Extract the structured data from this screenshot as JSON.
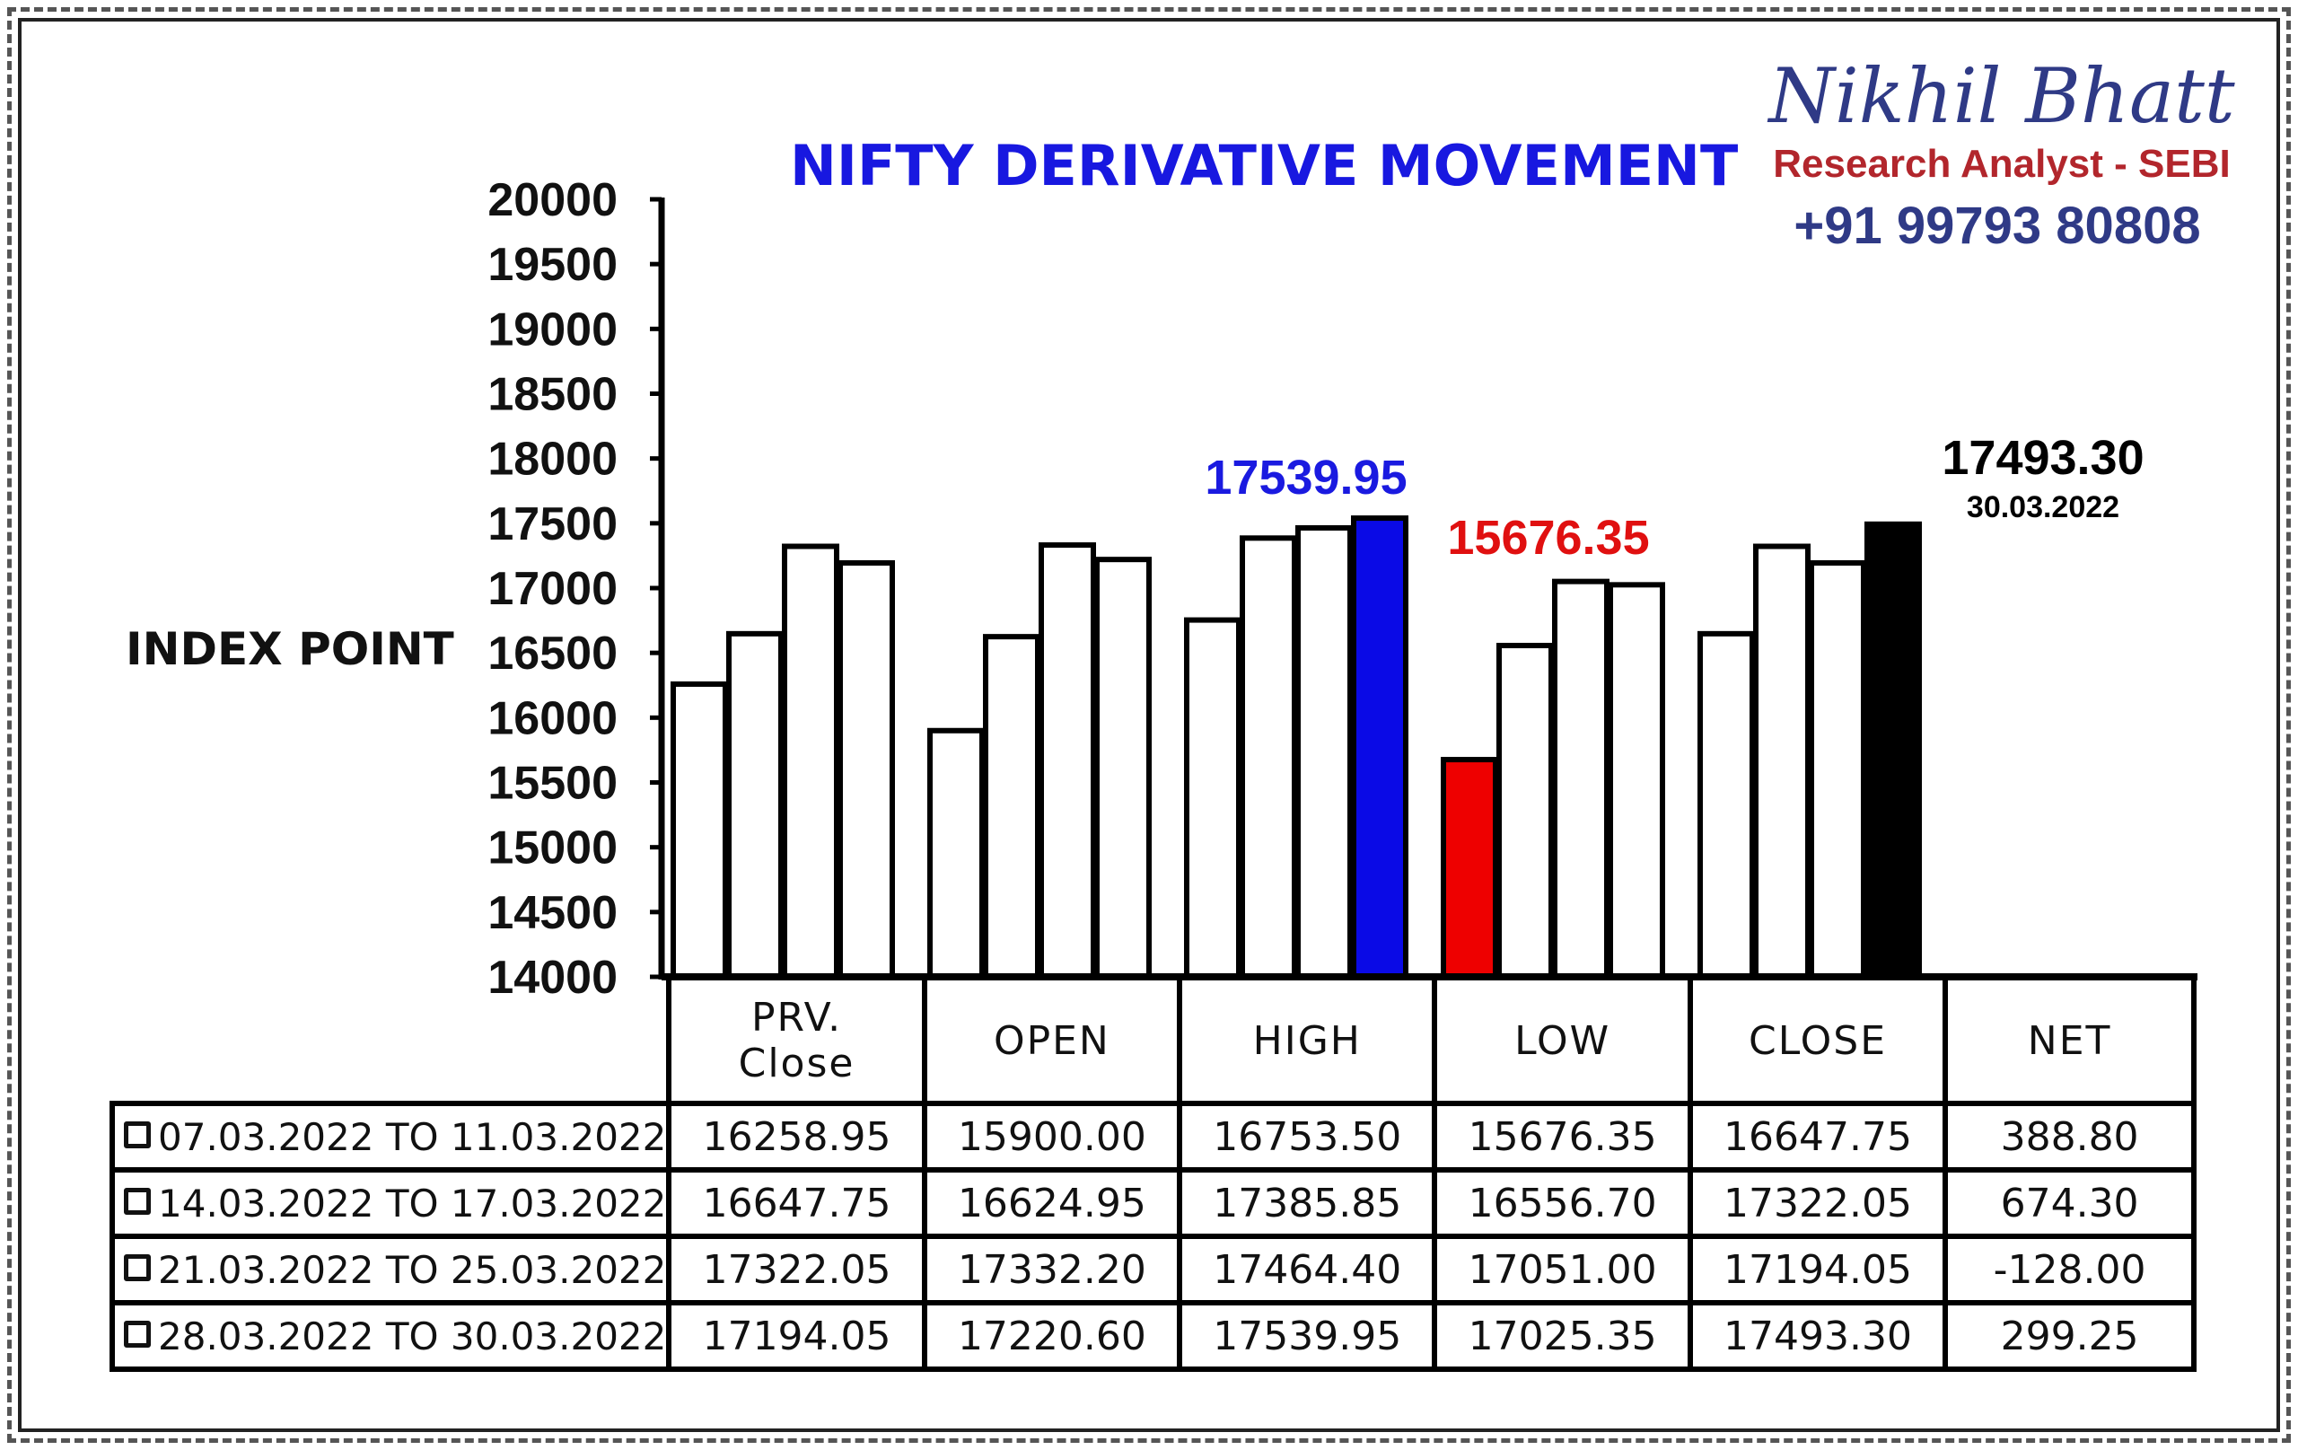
{
  "brand": {
    "name": "Nikhil Bhatt",
    "role": "Research Analyst - SEBI",
    "phone": "+91 99793 80808"
  },
  "chart_data": {
    "type": "bar",
    "title": "NIFTY DERIVATIVE MOVEMENT",
    "ylabel": "INDEX POINT",
    "xlabel": "",
    "ylim": [
      14000,
      20000
    ],
    "yticks": [
      20000,
      19500,
      19000,
      18500,
      18000,
      17500,
      17000,
      16500,
      16000,
      15500,
      15000,
      14500,
      14000
    ],
    "categories": [
      "PRV. Close",
      "OPEN",
      "HIGH",
      "LOW",
      "CLOSE"
    ],
    "series": [
      {
        "name": "07.03.2022 TO 11.03.2022",
        "values": [
          16258.95,
          15900.0,
          16753.5,
          15676.35,
          16647.75
        ]
      },
      {
        "name": "14.03.2022 TO 17.03.2022",
        "values": [
          16647.75,
          16624.95,
          17385.85,
          16556.7,
          17322.05
        ]
      },
      {
        "name": "21.03.2022 TO 25.03.2022",
        "values": [
          17322.05,
          17332.2,
          17464.4,
          17051.0,
          17194.05
        ]
      },
      {
        "name": "28.03.2022 TO 30.03.2022",
        "values": [
          17194.05,
          17220.6,
          17539.95,
          17025.35,
          17493.3
        ]
      }
    ],
    "highlights": [
      {
        "category": "HIGH",
        "series": 3,
        "color": "#0a0ae6"
      },
      {
        "category": "LOW",
        "series": 0,
        "color": "#ee0000"
      },
      {
        "category": "CLOSE",
        "series": 3,
        "color": "#000000"
      }
    ],
    "annotations": {
      "high": {
        "text": "17539.95",
        "color": "#1a1ae0"
      },
      "low": {
        "text": "15676.35",
        "color": "#e01010"
      },
      "close": {
        "text": "17493.30",
        "date": "30.03.2022",
        "color": "#000000"
      }
    },
    "grid": false,
    "bar_color": "#ffffff",
    "bar_edge": "#000000"
  },
  "table": {
    "headers": [
      "PRV.\nClose",
      "OPEN",
      "HIGH",
      "LOW",
      "CLOSE",
      "NET"
    ],
    "rows": [
      {
        "label": "07.03.2022 TO 11.03.2022",
        "cells": [
          "16258.95",
          "15900.00",
          "16753.50",
          "15676.35",
          "16647.75",
          "388.80"
        ]
      },
      {
        "label": "14.03.2022 TO 17.03.2022",
        "cells": [
          "16647.75",
          "16624.95",
          "17385.85",
          "16556.70",
          "17322.05",
          "674.30"
        ]
      },
      {
        "label": "21.03.2022 TO 25.03.2022",
        "cells": [
          "17322.05",
          "17332.20",
          "17464.40",
          "17051.00",
          "17194.05",
          "-128.00"
        ]
      },
      {
        "label": "28.03.2022 TO 30.03.2022",
        "cells": [
          "17194.05",
          "17220.60",
          "17539.95",
          "17025.35",
          "17493.30",
          "299.25"
        ]
      }
    ]
  }
}
